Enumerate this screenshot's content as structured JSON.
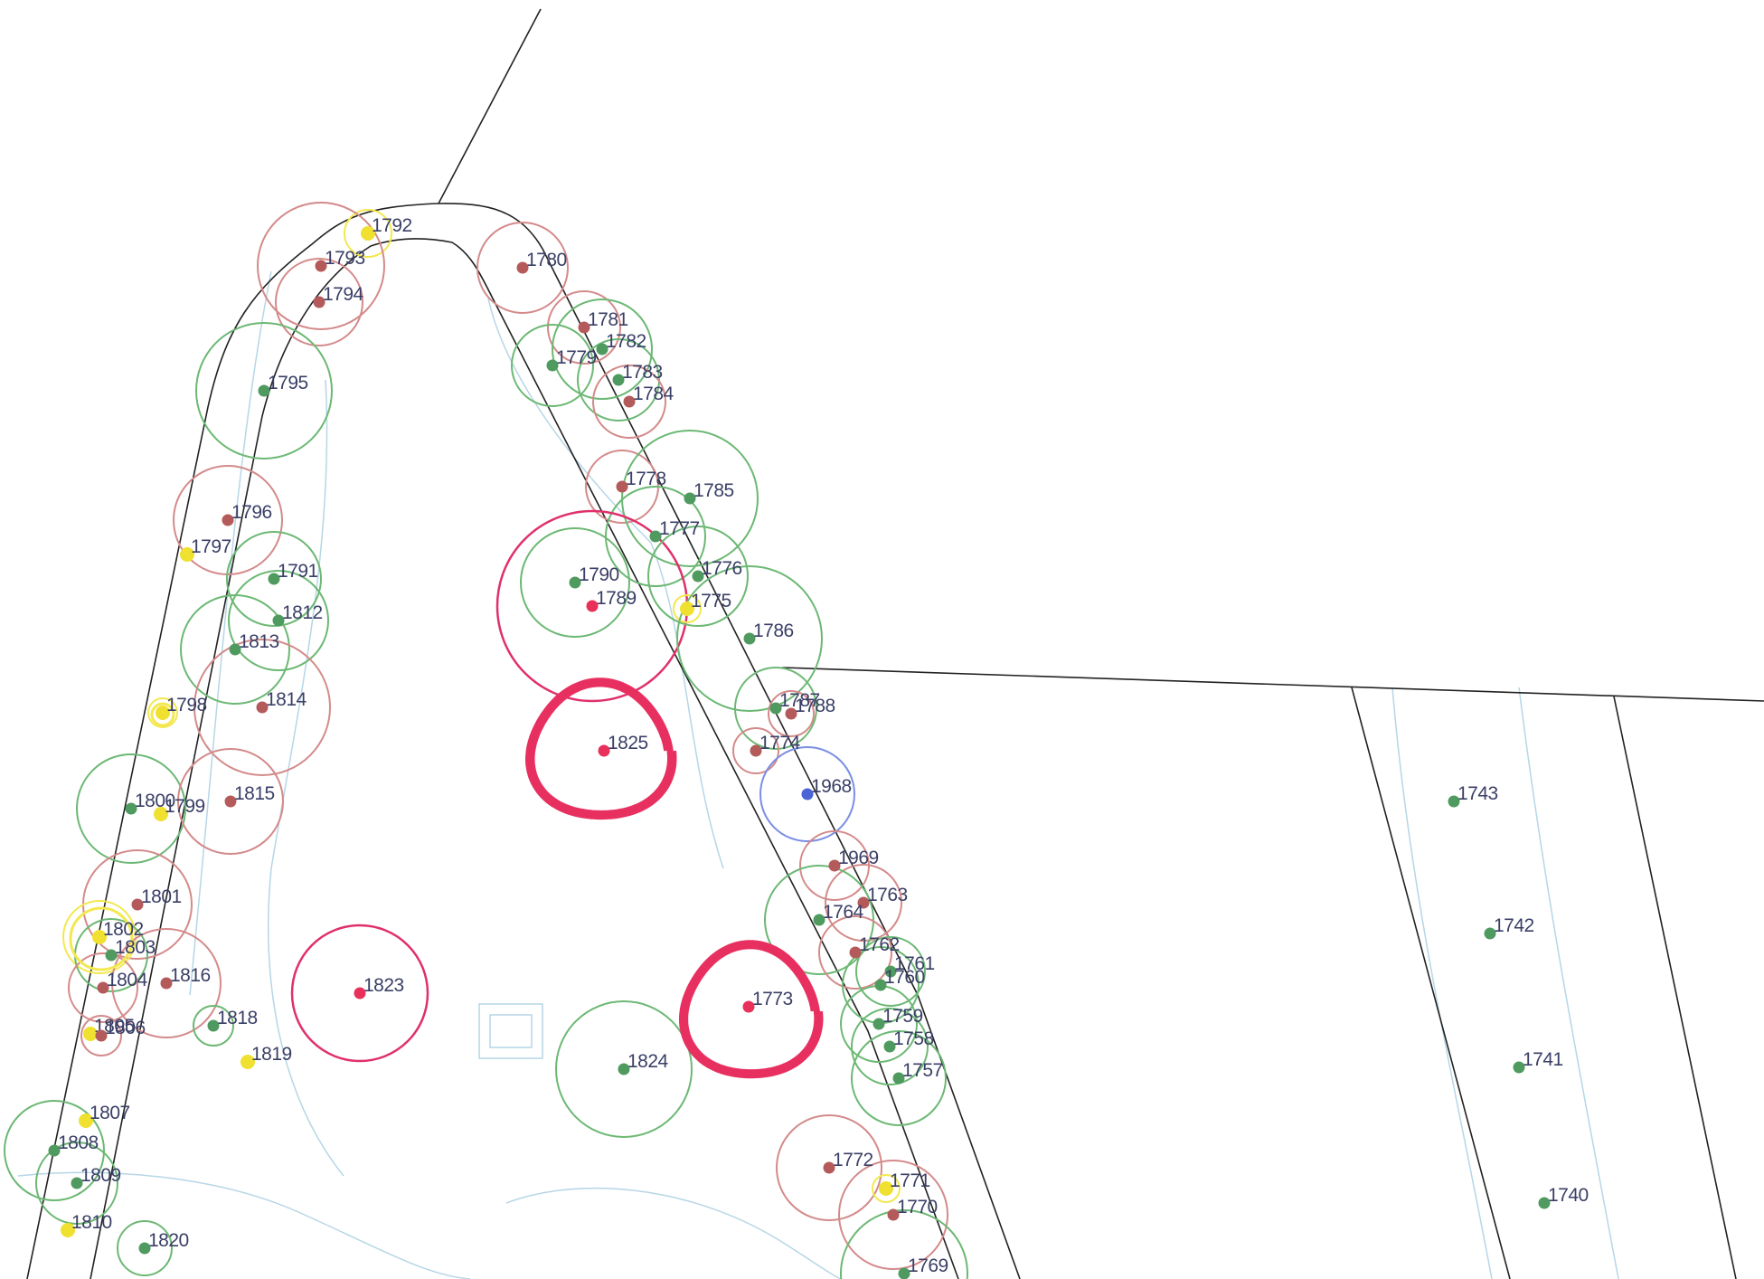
{
  "colors": {
    "healthy": "#4f9a5f",
    "poor": "#b55a5a",
    "dead": "#f0e030",
    "removal": "#e8305a",
    "other": "#4a64d8",
    "ring_healthy": "#6cb874",
    "ring_poor": "#d48a8a",
    "ring_dead": "#f3e850",
    "ring_removal": "#e0306a",
    "ring_other": "#7a8ee4",
    "label": "#3a3f66",
    "boundary": "#222222",
    "path": "#b6d6e6"
  },
  "trees": [
    {
      "id": "1792",
      "status": "dead"
    },
    {
      "id": "1793",
      "status": "poor"
    },
    {
      "id": "1794",
      "status": "poor"
    },
    {
      "id": "1795",
      "status": "healthy"
    },
    {
      "id": "1796",
      "status": "poor"
    },
    {
      "id": "1797",
      "status": "dead"
    },
    {
      "id": "1791",
      "status": "healthy"
    },
    {
      "id": "1812",
      "status": "healthy"
    },
    {
      "id": "1813",
      "status": "healthy"
    },
    {
      "id": "1798",
      "status": "dead"
    },
    {
      "id": "1814",
      "status": "poor"
    },
    {
      "id": "1800",
      "status": "healthy"
    },
    {
      "id": "1799",
      "status": "dead"
    },
    {
      "id": "1815",
      "status": "poor"
    },
    {
      "id": "1801",
      "status": "poor"
    },
    {
      "id": "1802",
      "status": "dead"
    },
    {
      "id": "1803",
      "status": "healthy"
    },
    {
      "id": "1804",
      "status": "poor"
    },
    {
      "id": "1816",
      "status": "poor"
    },
    {
      "id": "1805",
      "status": "dead"
    },
    {
      "id": "1806",
      "status": "poor"
    },
    {
      "id": "1818",
      "status": "healthy"
    },
    {
      "id": "1819",
      "status": "dead"
    },
    {
      "id": "1807",
      "status": "dead"
    },
    {
      "id": "1808",
      "status": "healthy"
    },
    {
      "id": "1809",
      "status": "healthy"
    },
    {
      "id": "1810",
      "status": "dead"
    },
    {
      "id": "1820",
      "status": "healthy"
    },
    {
      "id": "1823",
      "status": "removal"
    },
    {
      "id": "1780",
      "status": "poor"
    },
    {
      "id": "1781",
      "status": "poor"
    },
    {
      "id": "1782",
      "status": "healthy"
    },
    {
      "id": "1779",
      "status": "healthy"
    },
    {
      "id": "1783",
      "status": "healthy"
    },
    {
      "id": "1784",
      "status": "poor"
    },
    {
      "id": "1778",
      "status": "poor"
    },
    {
      "id": "1785",
      "status": "healthy"
    },
    {
      "id": "1777",
      "status": "healthy"
    },
    {
      "id": "1790",
      "status": "healthy"
    },
    {
      "id": "1789",
      "status": "removal"
    },
    {
      "id": "1776",
      "status": "healthy"
    },
    {
      "id": "1775",
      "status": "dead"
    },
    {
      "id": "1786",
      "status": "healthy"
    },
    {
      "id": "1825",
      "status": "removal"
    },
    {
      "id": "1787",
      "status": "healthy"
    },
    {
      "id": "1788",
      "status": "poor"
    },
    {
      "id": "1774",
      "status": "poor"
    },
    {
      "id": "1968",
      "status": "other"
    },
    {
      "id": "1969",
      "status": "poor"
    },
    {
      "id": "1763",
      "status": "poor"
    },
    {
      "id": "1764",
      "status": "healthy"
    },
    {
      "id": "1762",
      "status": "poor"
    },
    {
      "id": "1761",
      "status": "healthy"
    },
    {
      "id": "1760",
      "status": "healthy"
    },
    {
      "id": "1773",
      "status": "removal"
    },
    {
      "id": "1759",
      "status": "healthy"
    },
    {
      "id": "1758",
      "status": "healthy"
    },
    {
      "id": "1824",
      "status": "healthy"
    },
    {
      "id": "1757",
      "status": "healthy"
    },
    {
      "id": "1772",
      "status": "poor"
    },
    {
      "id": "1771",
      "status": "dead"
    },
    {
      "id": "1770",
      "status": "poor"
    },
    {
      "id": "1769",
      "status": "healthy"
    },
    {
      "id": "1743",
      "status": "healthy"
    },
    {
      "id": "1742",
      "status": "healthy"
    },
    {
      "id": "1741",
      "status": "healthy"
    },
    {
      "id": "1740",
      "status": "healthy"
    }
  ]
}
